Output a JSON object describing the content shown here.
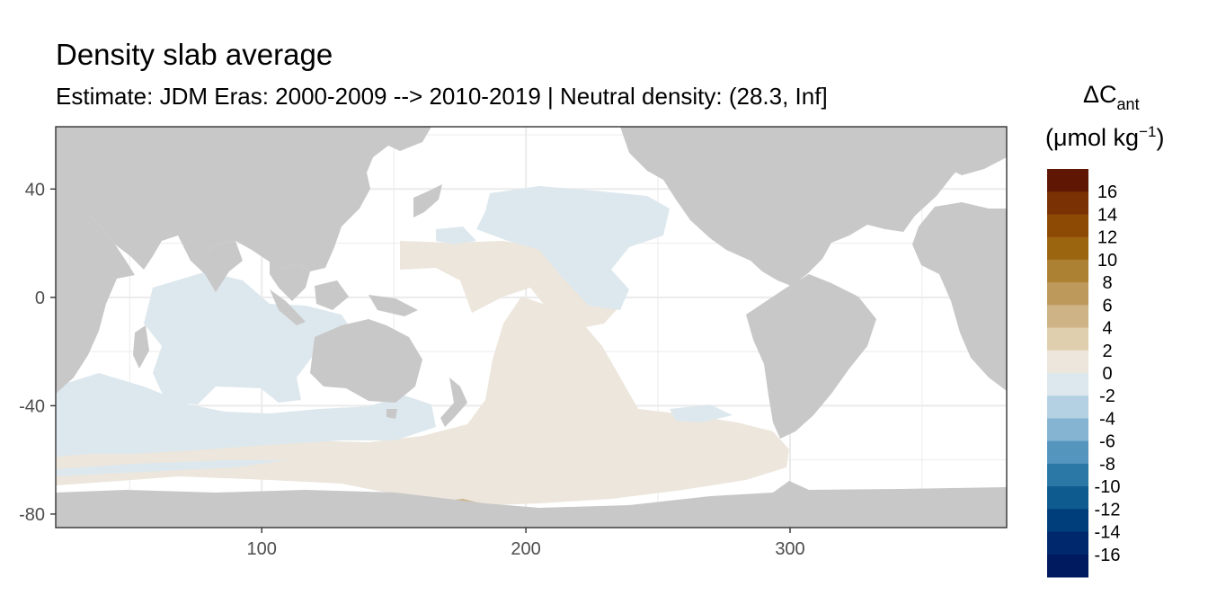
{
  "chart_data": {
    "type": "heatmap",
    "title": "Density slab average",
    "subtitle": "Estimate: JDM Eras: 2000-2009 --> 2010-2019 | Neutral density: (28.3, Inf]",
    "xlabel": "",
    "ylabel": "",
    "xlim": [
      22,
      382
    ],
    "ylim": [
      -85,
      63
    ],
    "x_ticks": [
      100,
      200,
      300
    ],
    "y_ticks": [
      40,
      0,
      -40,
      -80
    ],
    "grid": true,
    "legend": {
      "position": "right",
      "title_main": "ΔC",
      "title_sub": "ant",
      "unit_prefix": "(μmol kg",
      "unit_sup": "−1",
      "unit_suffix": ")",
      "labels": [
        "16",
        "14",
        "12",
        "10",
        "8",
        "6",
        "4",
        "2",
        "0",
        "-2",
        "-4",
        "-6",
        "-8",
        "-10",
        "-12",
        "-14",
        "-16"
      ],
      "colors": [
        "#5f1703",
        "#7a3104",
        "#8c4a05",
        "#9b650f",
        "#ad8133",
        "#bd9a5c",
        "#cdb386",
        "#e0cfae",
        "#ece6dc",
        "#dde8ee",
        "#b3d1e3",
        "#85b4d2",
        "#5495be",
        "#2b78a7",
        "#0e5b90",
        "#003e7b",
        "#00296d",
        "#001a60"
      ]
    },
    "regions": [
      {
        "category": "0 to 2",
        "description": "tropical Pacific and Southern Ocean bands"
      },
      {
        "category": "-2 to 0",
        "description": "Indian Ocean, North Pacific, south Indian sector"
      },
      {
        "category": "2 to 4",
        "description": "small patch near Ross Sea, about 165-185 E, -77 S"
      }
    ]
  },
  "colors": {
    "land": "#c8c8c8",
    "ocean_bg": "#ffffff",
    "grid": "#ebebeb",
    "axis": "#333333"
  }
}
